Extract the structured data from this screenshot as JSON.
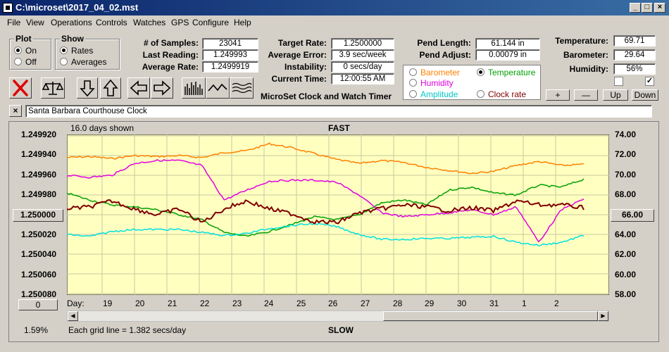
{
  "window": {
    "title": "C:\\microset\\2017_04_02.mst"
  },
  "menu": [
    "File",
    "View",
    "Operations",
    "Controls",
    "Watches",
    "GPS",
    "Configure",
    "Help"
  ],
  "plot": {
    "label": "Plot",
    "on": "On",
    "off": "Off",
    "selected": "On"
  },
  "show": {
    "label": "Show",
    "rates": "Rates",
    "averages": "Averages",
    "selected": "Rates"
  },
  "stats": {
    "samples_label": "# of Samples:",
    "samples": "23041",
    "last_label": "Last Reading:",
    "last": "1.249993",
    "avg_label": "Average Rate:",
    "avg": "1.2499919",
    "target_label": "Target Rate:",
    "target": "1.2500000",
    "averr_label": "Average Error:",
    "averr": "3.9 sec/week",
    "instab_label": "Instability:",
    "instab": "0 secs/day",
    "time_label": "Current Time:",
    "time": "12:00:55 AM",
    "pendlen_label": "Pend Length:",
    "pendlen": "61.144 in",
    "pendadj_label": "Pend Adjust:",
    "pendadj": "0.00079 in",
    "temp_label": "Temperature:",
    "temp": "69.71",
    "baro_label": "Barometer:",
    "baro": "29.64",
    "hum_label": "Humidity:",
    "hum": "56%"
  },
  "app_name": "MicroSet Clock and Watch Timer",
  "traces": {
    "barometer": "Barometer",
    "temperature": "Temperature",
    "humidity": "Humidity",
    "amplitude": "Amplitude",
    "clockrate": "Clock rate",
    "selected": "Temperature"
  },
  "colors": {
    "barometer": "#ff8000",
    "temperature": "#00a000",
    "humidity": "#e000e0",
    "amplitude": "#00e0e0",
    "clockrate": "#800000",
    "plot_bg": "#ffffc0"
  },
  "buttons": {
    "plus": "+",
    "minus": "—",
    "up": "Up",
    "down": "Down",
    "left_offset": "0",
    "right_offset": "66.00",
    "left_center": "1.250000"
  },
  "watch_name": "Santa Barbara Courthouse Clock",
  "chart_top": {
    "days_shown": "16.0 days shown",
    "fast": "FAST",
    "slow": "SLOW",
    "grid_note": "Each grid line = 1.382 secs/day",
    "percent": "1.59%",
    "day_label": "Day:"
  },
  "chart_data": {
    "type": "line",
    "y_left_ticks": [
      "1.249920",
      "1.249940",
      "1.249960",
      "1.249980",
      "1.250000",
      "1.250020",
      "1.250040",
      "1.250060",
      "1.250080"
    ],
    "y_right_ticks": [
      "74.00",
      "72.00",
      "70.00",
      "68.00",
      "66.00",
      "64.00",
      "62.00",
      "60.00",
      "58.00"
    ],
    "x_ticks": [
      "19",
      "20",
      "21",
      "22",
      "23",
      "24",
      "25",
      "26",
      "27",
      "28",
      "29",
      "30",
      "31",
      "1",
      "2"
    ],
    "series": [
      {
        "name": "Barometer",
        "color": "#ff8000",
        "y": [
          71.8,
          71.9,
          71.7,
          72.0,
          71.9,
          72.0,
          71.8,
          72.3,
          72.5,
          73.2,
          72.8,
          72.2,
          71.6,
          71.2,
          71.5,
          71.3,
          70.8,
          70.5,
          70.2,
          70.4,
          71.0,
          71.4,
          71.0,
          71.1
        ]
      },
      {
        "name": "Temperature",
        "color": "#00a000",
        "y": [
          68.2,
          67.5,
          67.0,
          66.8,
          66.5,
          66.0,
          65.5,
          64.2,
          63.8,
          64.3,
          65.0,
          65.8,
          65.5,
          66.0,
          67.2,
          67.5,
          67.0,
          68.5,
          68.8,
          68.2,
          68.0,
          69.0,
          68.8,
          69.6
        ]
      },
      {
        "name": "Humidity",
        "color": "#e000e0",
        "y": [
          70.0,
          69.8,
          70.0,
          71.2,
          71.5,
          71.5,
          71.0,
          67.5,
          68.5,
          69.4,
          69.5,
          69.5,
          69.3,
          68.0,
          66.2,
          65.8,
          66.0,
          66.2,
          66.5,
          66.0,
          66.8,
          63.2,
          66.5,
          67.6
        ]
      },
      {
        "name": "Amplitude",
        "color": "#00e0e0",
        "y": [
          64.0,
          63.8,
          64.3,
          64.5,
          64.5,
          64.5,
          64.2,
          63.9,
          64.1,
          64.6,
          64.9,
          65.1,
          64.8,
          64.0,
          63.5,
          63.5,
          63.6,
          63.6,
          63.7,
          63.8,
          63.2,
          62.9,
          63.2,
          63.9
        ]
      },
      {
        "name": "Clock rate",
        "color": "#800000",
        "y": [
          1.249994,
          1.249992,
          1.249986,
          1.249994,
          1.25,
          1.249994,
          1.250008,
          1.249994,
          1.249986,
          1.249994,
          1.249999,
          1.250007,
          1.250008,
          1.249998,
          1.249994,
          1.24999,
          1.249992,
          1.249996,
          1.249993,
          1.249996,
          1.249986,
          1.24999,
          1.24999,
          1.249993
        ]
      }
    ],
    "ylim_left": [
      1.24992,
      1.25008
    ],
    "ylim_right": [
      58,
      74
    ]
  }
}
